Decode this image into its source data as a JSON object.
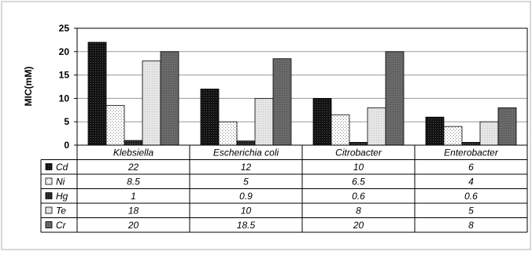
{
  "chart_data": {
    "type": "bar",
    "ylabel": "MIC(mM)",
    "ylim": [
      0,
      25
    ],
    "yticks": [
      0,
      5,
      10,
      15,
      20,
      25
    ],
    "grid": true,
    "legend": "data-table",
    "categories": [
      "Klebsiella",
      "Escherichia coli",
      "Citrobacter",
      "Enterobacter"
    ],
    "series": [
      {
        "name": "Cd",
        "values": [
          22,
          12,
          10,
          6
        ],
        "display": [
          "22",
          "12",
          "10",
          "6"
        ],
        "color": "#111111",
        "pattern": "black"
      },
      {
        "name": "Ni",
        "values": [
          8.5,
          5,
          6.5,
          4
        ],
        "display": [
          "8.5",
          "5",
          "6.5",
          "4"
        ],
        "color": "#ffffff",
        "pattern": "dots"
      },
      {
        "name": "Hg",
        "values": [
          1,
          0.9,
          0.6,
          0.6
        ],
        "display": [
          "1",
          "0.9",
          "0.6",
          "0.6"
        ],
        "color": "#2a2a2a",
        "pattern": "dark"
      },
      {
        "name": "Te",
        "values": [
          18,
          10,
          8,
          5
        ],
        "display": [
          "18",
          "10",
          "8",
          "5"
        ],
        "color": "#e2e2e2",
        "pattern": "light"
      },
      {
        "name": "Cr",
        "values": [
          20,
          18.5,
          20,
          8
        ],
        "display": [
          "20",
          "18.5",
          "20",
          "8"
        ],
        "color": "#6a6a6a",
        "pattern": "grey"
      }
    ]
  }
}
